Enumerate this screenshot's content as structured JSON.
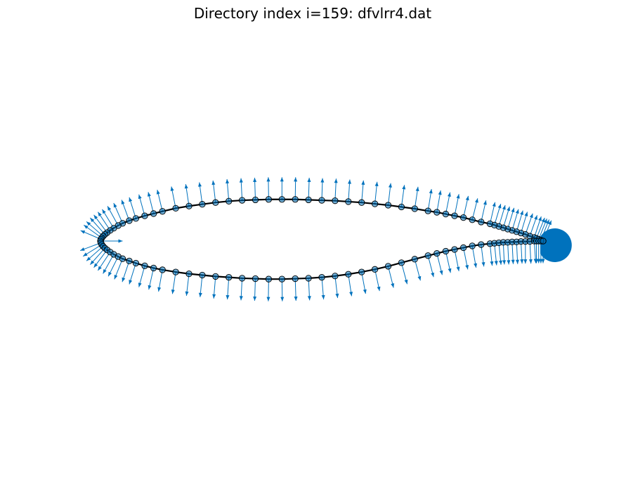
{
  "chart_data": {
    "type": "scatter",
    "title": "Directory index i=159: dfvlrr4.dat",
    "xlabel": "",
    "ylabel": "",
    "grid": false,
    "axis_visible": false,
    "legend": "none",
    "equal_aspect": true,
    "xlim": [
      -0.03,
      1.05
    ],
    "ylim": [
      -0.47,
      0.38
    ],
    "colors": {
      "line": "#000000",
      "marker_face": "#0072bd",
      "marker_edge": "#000000",
      "normal_arrows": "#0072bd"
    },
    "series": [
      {
        "kind": "line-with-markers",
        "x": [
          1.0,
          0.995,
          0.99,
          0.985,
          0.98,
          0.97,
          0.96,
          0.95,
          0.94,
          0.93,
          0.92,
          0.91,
          0.9,
          0.89,
          0.88,
          0.86,
          0.84,
          0.82,
          0.8,
          0.78,
          0.76,
          0.74,
          0.71,
          0.68,
          0.65,
          0.62,
          0.59,
          0.56,
          0.53,
          0.5,
          0.47,
          0.44,
          0.41,
          0.38,
          0.35,
          0.32,
          0.29,
          0.26,
          0.23,
          0.2,
          0.17,
          0.14,
          0.12,
          0.1,
          0.08,
          0.065,
          0.05,
          0.04,
          0.03,
          0.022,
          0.015,
          0.01,
          0.006,
          0.003,
          0.001,
          0.0,
          0.001,
          0.003,
          0.006,
          0.01,
          0.015,
          0.022,
          0.03,
          0.04,
          0.05,
          0.065,
          0.08,
          0.1,
          0.12,
          0.14,
          0.17,
          0.2,
          0.23,
          0.26,
          0.29,
          0.32,
          0.35,
          0.38,
          0.41,
          0.44,
          0.47,
          0.5,
          0.53,
          0.56,
          0.59,
          0.62,
          0.65,
          0.68,
          0.71,
          0.74,
          0.76,
          0.78,
          0.8,
          0.82,
          0.84,
          0.86,
          0.88,
          0.89,
          0.9,
          0.91,
          0.92,
          0.93,
          0.94,
          0.95,
          0.96,
          0.97,
          0.98,
          0.985,
          0.99,
          0.995,
          1.0
        ],
        "y": [
          0.0,
          0.002,
          0.004,
          0.006,
          0.008,
          0.011,
          0.015,
          0.018,
          0.021,
          0.024,
          0.027,
          0.03,
          0.033,
          0.036,
          0.039,
          0.043,
          0.048,
          0.053,
          0.057,
          0.061,
          0.065,
          0.068,
          0.073,
          0.077,
          0.081,
          0.084,
          0.087,
          0.089,
          0.091,
          0.092,
          0.093,
          0.094,
          0.094,
          0.094,
          0.093,
          0.092,
          0.09,
          0.087,
          0.083,
          0.079,
          0.074,
          0.067,
          0.062,
          0.057,
          0.051,
          0.046,
          0.04,
          0.035,
          0.029,
          0.024,
          0.019,
          0.015,
          0.011,
          0.007,
          0.004,
          0.0,
          -0.004,
          -0.008,
          -0.012,
          -0.016,
          -0.02,
          -0.025,
          -0.03,
          -0.035,
          -0.04,
          -0.045,
          -0.05,
          -0.056,
          -0.061,
          -0.065,
          -0.07,
          -0.074,
          -0.077,
          -0.08,
          -0.082,
          -0.084,
          -0.085,
          -0.086,
          -0.086,
          -0.085,
          -0.084,
          -0.082,
          -0.079,
          -0.075,
          -0.07,
          -0.064,
          -0.057,
          -0.049,
          -0.041,
          -0.033,
          -0.028,
          -0.023,
          -0.019,
          -0.015,
          -0.011,
          -0.008,
          -0.006,
          -0.005,
          -0.004,
          -0.003,
          -0.003,
          -0.002,
          -0.002,
          -0.001,
          -0.001,
          -0.001,
          0.0,
          0.0,
          0.0,
          0.0,
          0.0
        ]
      },
      {
        "kind": "quiver",
        "description_of_values": "unit outward surface normals drawn at every airfoil point",
        "arrow_length": 0.05
      }
    ]
  }
}
